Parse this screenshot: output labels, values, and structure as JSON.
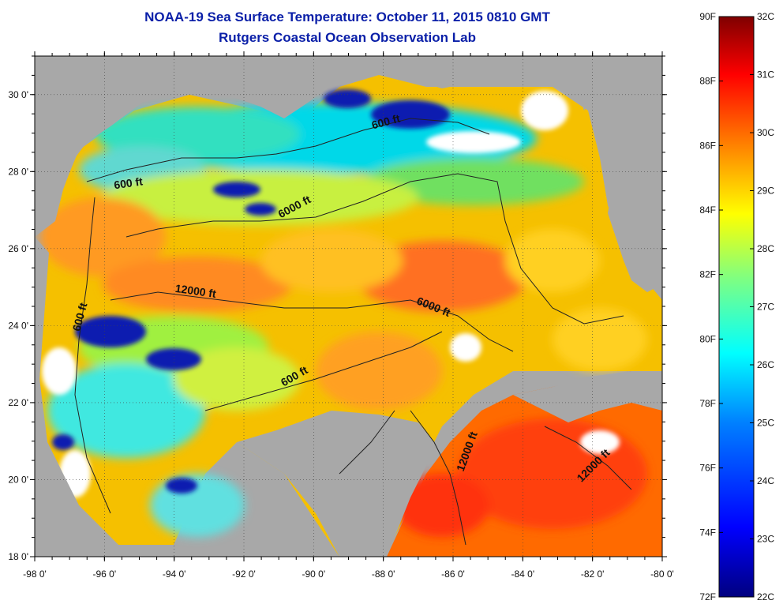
{
  "title": "NOAA-19 Sea Surface Temperature:  October 11, 2015 0810 GMT",
  "subtitle": "Rutgers Coastal Ocean Observation Lab",
  "map": {
    "lon_range": [
      -98,
      -80
    ],
    "lat_range": [
      18,
      31
    ],
    "x_ticks": [
      "-98 0'",
      "-96 0'",
      "-94 0'",
      "-92 0'",
      "-90 0'",
      "-88 0'",
      "-86 0'",
      "-84 0'",
      "-82 0'",
      "-80 0'"
    ],
    "y_ticks": [
      "18 0'",
      "20 0'",
      "22 0'",
      "24 0'",
      "26 0'",
      "28 0'",
      "30 0'"
    ],
    "land_color": "#a8a8a8",
    "cloud_color": "#ffffff",
    "contour_labels": [
      {
        "text": "600 ft",
        "lon": -95.3,
        "lat": 27.6,
        "angle": -8
      },
      {
        "text": "600 ft",
        "lon": -87.9,
        "lat": 29.2,
        "angle": -15
      },
      {
        "text": "6000 ft",
        "lon": -90.5,
        "lat": 27.0,
        "angle": -28
      },
      {
        "text": "12000 ft",
        "lon": -93.4,
        "lat": 24.8,
        "angle": 8
      },
      {
        "text": "6000 ft",
        "lon": -86.6,
        "lat": 24.4,
        "angle": 22
      },
      {
        "text": "600 ft",
        "lon": -96.6,
        "lat": 24.2,
        "angle": -75
      },
      {
        "text": "600 ft",
        "lon": -90.5,
        "lat": 22.6,
        "angle": -30
      },
      {
        "text": "12000 ft",
        "lon": -85.5,
        "lat": 20.7,
        "angle": -70
      },
      {
        "text": "12000 ft",
        "lon": -81.9,
        "lat": 20.3,
        "angle": -45
      }
    ]
  },
  "colorbar": {
    "fahrenheit": [
      "90F",
      "88F",
      "86F",
      "84F",
      "82F",
      "80F",
      "78F",
      "76F",
      "74F",
      "72F"
    ],
    "celsius": [
      "32C",
      "31C",
      "30C",
      "29C",
      "28C",
      "27C",
      "26C",
      "25C",
      "24C",
      "23C",
      "22C"
    ],
    "stops": [
      "#00007f",
      "#0000ff",
      "#0080ff",
      "#00ffff",
      "#80ff80",
      "#ffff00",
      "#ff8000",
      "#ff0000",
      "#7f0000"
    ]
  }
}
